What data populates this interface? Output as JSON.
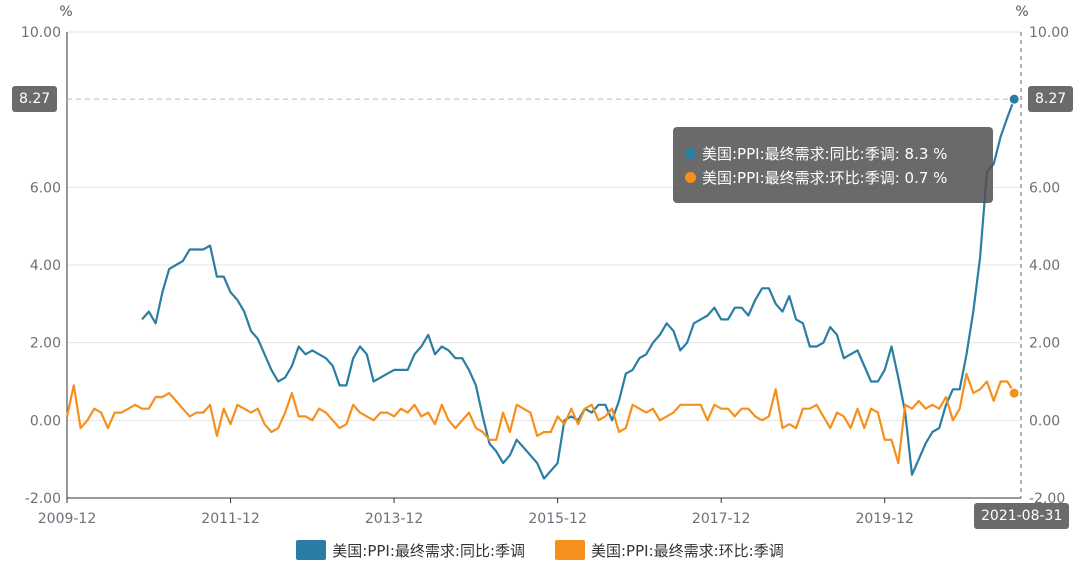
{
  "chart_data": {
    "type": "line",
    "y_unit_left": "%",
    "y_unit_right": "%",
    "ylim": [
      -2,
      10
    ],
    "y_ticks": [
      "10.00",
      "6.00",
      "4.00",
      "2.00",
      "0.00",
      "-2.00"
    ],
    "y_ticks_right": [
      "10.00",
      "6.00",
      "4.00",
      "2.00",
      "0.00",
      "-2.00"
    ],
    "x_tick_labels": [
      "2009-12",
      "2011-12",
      "2013-12",
      "2015-12",
      "2017-12",
      "2019-12"
    ],
    "x_pointer_label": "2021-08-31",
    "y_pointer_value": "8.27",
    "grid": true,
    "legend_position": "bottom",
    "series": [
      {
        "name": "美国:PPI:最终需求:同比:季调",
        "color": "#2b7ea3",
        "start": "2010-11",
        "values": [
          2.6,
          2.8,
          2.5,
          3.3,
          3.9,
          4.0,
          4.1,
          4.4,
          4.4,
          4.4,
          4.5,
          3.7,
          3.7,
          3.3,
          3.1,
          2.8,
          2.3,
          2.1,
          1.7,
          1.3,
          1.0,
          1.1,
          1.4,
          1.9,
          1.7,
          1.8,
          1.7,
          1.6,
          1.4,
          0.9,
          0.9,
          1.6,
          1.9,
          1.7,
          1.0,
          1.1,
          1.2,
          1.3,
          1.3,
          1.3,
          1.7,
          1.9,
          2.2,
          1.7,
          1.9,
          1.8,
          1.6,
          1.6,
          1.3,
          0.9,
          0.1,
          -0.6,
          -0.8,
          -1.1,
          -0.9,
          -0.5,
          -0.7,
          -0.9,
          -1.1,
          -1.5,
          -1.3,
          -1.1,
          0.0,
          0.1,
          0.0,
          0.3,
          0.2,
          0.4,
          0.4,
          0.0,
          0.5,
          1.2,
          1.3,
          1.6,
          1.7,
          2.0,
          2.2,
          2.5,
          2.3,
          1.8,
          2.0,
          2.5,
          2.6,
          2.7,
          2.9,
          2.6,
          2.6,
          2.9,
          2.9,
          2.7,
          3.1,
          3.4,
          3.4,
          3.0,
          2.8,
          3.2,
          2.6,
          2.5,
          1.9,
          1.9,
          2.0,
          2.4,
          2.2,
          1.6,
          1.7,
          1.8,
          1.4,
          1.0,
          1.0,
          1.3,
          1.9,
          1.1,
          0.2,
          -1.4,
          -1.0,
          -0.6,
          -0.3,
          -0.2,
          0.4,
          0.8,
          0.8,
          1.7,
          2.8,
          4.2,
          6.4,
          6.6,
          7.3,
          7.8,
          8.27
        ]
      },
      {
        "name": "美国:PPI:最终需求:环比:季调",
        "color": "#f5901f",
        "start": "2009-12",
        "values": [
          0.1,
          0.9,
          -0.2,
          0.0,
          0.3,
          0.2,
          -0.2,
          0.2,
          0.2,
          0.3,
          0.4,
          0.3,
          0.3,
          0.6,
          0.6,
          0.7,
          0.5,
          0.3,
          0.1,
          0.2,
          0.2,
          0.4,
          -0.4,
          0.3,
          -0.1,
          0.4,
          0.3,
          0.2,
          0.3,
          -0.1,
          -0.3,
          -0.2,
          0.2,
          0.7,
          0.1,
          0.1,
          0.0,
          0.3,
          0.2,
          0.0,
          -0.2,
          -0.1,
          0.4,
          0.2,
          0.1,
          0.0,
          0.2,
          0.2,
          0.1,
          0.3,
          0.2,
          0.4,
          0.1,
          0.2,
          -0.1,
          0.4,
          0.0,
          -0.2,
          0.0,
          0.2,
          -0.2,
          -0.3,
          -0.5,
          -0.5,
          0.2,
          -0.3,
          0.4,
          0.3,
          0.2,
          -0.4,
          -0.3,
          -0.3,
          0.1,
          -0.1,
          0.3,
          -0.1,
          0.3,
          0.4,
          0.0,
          0.1,
          0.3,
          -0.3,
          -0.2,
          0.4,
          0.3,
          0.2,
          0.3,
          0.0,
          0.1,
          0.2,
          0.4,
          0.4,
          0.4,
          0.4,
          0.0,
          0.4,
          0.3,
          0.3,
          0.1,
          0.3,
          0.3,
          0.1,
          0.0,
          0.1,
          0.8,
          -0.2,
          -0.1,
          -0.2,
          0.3,
          0.3,
          0.4,
          0.1,
          -0.2,
          0.2,
          0.1,
          -0.2,
          0.3,
          -0.2,
          0.3,
          0.2,
          -0.5,
          -0.5,
          -1.1,
          0.4,
          0.3,
          0.5,
          0.3,
          0.4,
          0.3,
          0.6,
          0.0,
          0.3,
          1.2,
          0.7,
          0.8,
          1.0,
          0.5,
          1.0,
          1.0,
          0.7
        ]
      }
    ]
  },
  "tooltip": {
    "rows": [
      {
        "text": "美国:PPI:最终需求:同比:季调: 8.3 %",
        "color": "#2b7ea3"
      },
      {
        "text": "美国:PPI:最终需求:环比:季调: 0.7 %",
        "color": "#f5901f"
      }
    ]
  }
}
